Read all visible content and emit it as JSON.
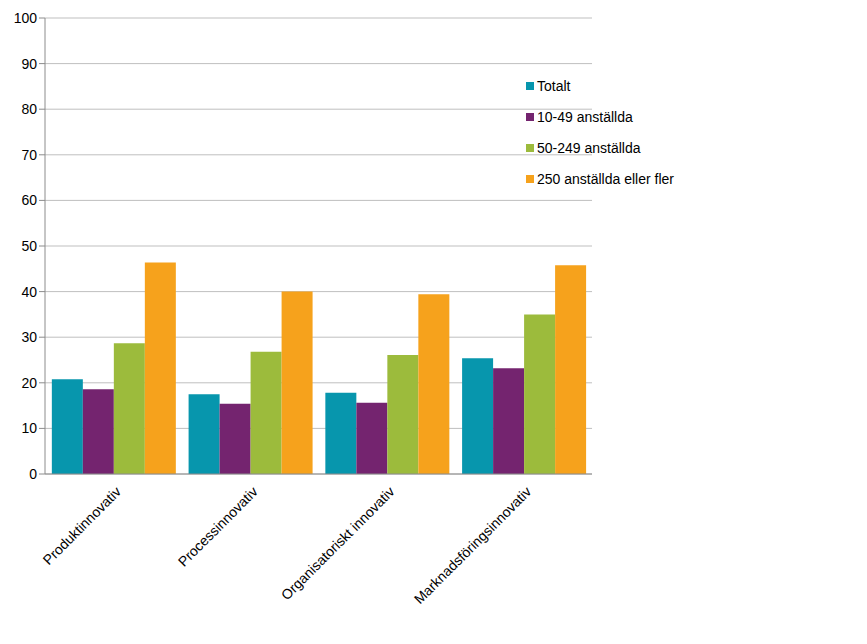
{
  "chart_data": {
    "type": "bar",
    "categories": [
      "Produktinnovativ",
      "Processinnovativ",
      "Organisatoriskt innovativ",
      "Marknadsföringsinnovativ"
    ],
    "series": [
      {
        "name": "Totalt",
        "color": "#0796ad",
        "values": [
          20.8,
          17.5,
          17.8,
          25.4
        ]
      },
      {
        "name": "10-49 anställda",
        "color": "#74246f",
        "values": [
          18.6,
          15.4,
          15.6,
          23.2
        ]
      },
      {
        "name": "50-249 anställda",
        "color": "#9cbb3c",
        "values": [
          28.7,
          26.8,
          26.1,
          35.0
        ]
      },
      {
        "name": "250 anställda eller fler",
        "color": "#f6a21c",
        "values": [
          46.4,
          40.0,
          39.4,
          45.8
        ]
      }
    ],
    "ylim": [
      0,
      100
    ],
    "yticks": [
      0,
      10,
      20,
      30,
      40,
      50,
      60,
      70,
      80,
      90,
      100
    ],
    "grid": true,
    "legend": "upper right"
  }
}
